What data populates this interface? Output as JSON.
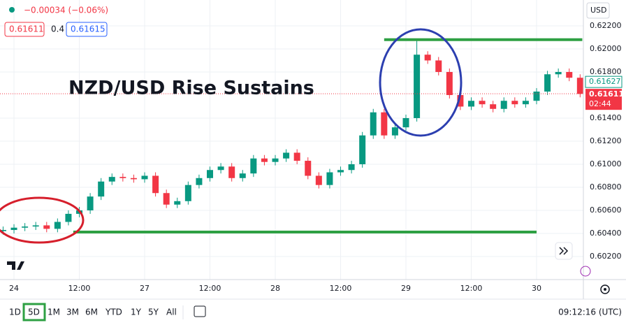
{
  "chart_data": {
    "type": "candlestick",
    "title": "NZD/USD Rise Sustains",
    "x": [
      -2,
      0,
      2,
      4,
      6,
      8,
      10,
      12,
      14,
      16,
      18,
      20,
      22,
      24,
      26,
      28,
      30,
      32,
      34,
      36,
      38,
      40,
      42,
      44,
      46,
      48,
      50,
      52,
      54,
      56,
      58,
      60,
      62,
      64,
      66,
      68,
      70,
      72,
      74,
      76,
      78,
      80,
      82,
      84,
      86,
      88,
      90,
      92,
      94,
      96,
      98,
      100,
      102,
      104
    ],
    "open": [
      0.6042,
      0.6043,
      0.6045,
      0.6046,
      0.6047,
      0.6044,
      0.605,
      0.6057,
      0.606,
      0.6072,
      0.6085,
      0.6089,
      0.6088,
      0.6087,
      0.609,
      0.6075,
      0.6065,
      0.6068,
      0.6082,
      0.6088,
      0.6095,
      0.6098,
      0.6088,
      0.6092,
      0.6105,
      0.6102,
      0.6105,
      0.611,
      0.6103,
      0.609,
      0.6082,
      0.6093,
      0.6095,
      0.61,
      0.6125,
      0.6145,
      0.6125,
      0.6132,
      0.614,
      0.6195,
      0.619,
      0.618,
      0.616,
      0.615,
      0.6155,
      0.6152,
      0.6148,
      0.6155,
      0.6152,
      0.6155,
      0.6163,
      0.6178,
      0.618,
      0.6175
    ],
    "high": [
      0.6046,
      0.6048,
      0.6049,
      0.605,
      0.605,
      0.6053,
      0.606,
      0.6063,
      0.6075,
      0.6088,
      0.6092,
      0.6092,
      0.6091,
      0.6093,
      0.6093,
      0.6078,
      0.6071,
      0.6085,
      0.6091,
      0.6098,
      0.6101,
      0.6101,
      0.6095,
      0.6108,
      0.6108,
      0.6108,
      0.6113,
      0.6113,
      0.6106,
      0.6093,
      0.6096,
      0.6098,
      0.6103,
      0.6128,
      0.6148,
      0.6148,
      0.6135,
      0.6143,
      0.6207,
      0.6198,
      0.6193,
      0.6183,
      0.6163,
      0.6158,
      0.6158,
      0.6155,
      0.6158,
      0.6158,
      0.6158,
      0.6166,
      0.6181,
      0.6183,
      0.6183,
      0.6178
    ],
    "low": [
      0.6039,
      0.604,
      0.6042,
      0.6043,
      0.6041,
      0.6041,
      0.6047,
      0.6054,
      0.6057,
      0.6069,
      0.6082,
      0.6085,
      0.6084,
      0.6084,
      0.6072,
      0.6062,
      0.6062,
      0.6065,
      0.6079,
      0.6085,
      0.6092,
      0.6085,
      0.6085,
      0.6089,
      0.6099,
      0.6099,
      0.6102,
      0.61,
      0.6087,
      0.6079,
      0.6079,
      0.609,
      0.6092,
      0.6097,
      0.6122,
      0.6122,
      0.6122,
      0.6129,
      0.6137,
      0.6187,
      0.6177,
      0.6157,
      0.6147,
      0.6147,
      0.6149,
      0.6145,
      0.6145,
      0.6149,
      0.6149,
      0.6152,
      0.616,
      0.6175,
      0.6172,
      0.6158
    ],
    "close": [
      0.6043,
      0.6045,
      0.6046,
      0.6047,
      0.6044,
      0.605,
      0.6057,
      0.606,
      0.6072,
      0.6085,
      0.6089,
      0.6088,
      0.6087,
      0.609,
      0.6075,
      0.6065,
      0.6068,
      0.6082,
      0.6088,
      0.6095,
      0.6098,
      0.6088,
      0.6092,
      0.6105,
      0.6102,
      0.6105,
      0.611,
      0.6103,
      0.609,
      0.6082,
      0.6093,
      0.6095,
      0.61,
      0.6125,
      0.6145,
      0.6125,
      0.6132,
      0.614,
      0.6195,
      0.619,
      0.618,
      0.616,
      0.615,
      0.6155,
      0.6152,
      0.6148,
      0.6155,
      0.6152,
      0.6155,
      0.6163,
      0.6178,
      0.618,
      0.6175,
      0.6161
    ],
    "up_color": "#089981",
    "down_color": "#f23645",
    "xlim": [
      -2.57,
      104.6
    ],
    "xticks": [
      {
        "value": 0,
        "label": "24"
      },
      {
        "value": 12,
        "label": "12:00"
      },
      {
        "value": 24,
        "label": "27"
      },
      {
        "value": 36,
        "label": "12:00"
      },
      {
        "value": 48,
        "label": "28"
      },
      {
        "value": 60,
        "label": "12:00"
      },
      {
        "value": 72,
        "label": "29"
      },
      {
        "value": 84,
        "label": "12:00"
      },
      {
        "value": 96,
        "label": "30"
      }
    ],
    "ylim": [
      0.6,
      0.62424
    ],
    "yticks": [
      {
        "value": 0.622,
        "label": "0.62200"
      },
      {
        "value": 0.62,
        "label": "0.62000"
      },
      {
        "value": 0.618,
        "label": "0.61800"
      },
      {
        "value": 0.614,
        "label": "0.61400"
      },
      {
        "value": 0.612,
        "label": "0.61200"
      },
      {
        "value": 0.61,
        "label": "0.61000"
      },
      {
        "value": 0.608,
        "label": "0.60800"
      },
      {
        "value": 0.606,
        "label": "0.60600"
      },
      {
        "value": 0.604,
        "label": "0.60400"
      },
      {
        "value": 0.602,
        "label": "0.60200"
      }
    ],
    "grid": true,
    "currency": "USD",
    "annotations": [
      {
        "value": 0.6208,
        "x": [
          68,
          104.4
        ],
        "color": "#2ea043"
      },
      {
        "value": 0.60412,
        "x": [
          10.9,
          96
        ],
        "color": "#2ea043"
      }
    ],
    "price_labels": [
      {
        "value": 0.61627,
        "label": "0.61627"
      },
      {
        "value": 0.61611,
        "label": "0.61611",
        "countdown": "02:44"
      }
    ]
  },
  "ui": {
    "change": "−0.00034 (−0.06%)",
    "bid": "0.61611",
    "spread": "0.4",
    "ask": "0.61615",
    "ranges": [
      "1D",
      "5D",
      "1M",
      "3M",
      "6M",
      "YTD",
      "1Y",
      "5Y",
      "All"
    ],
    "clock": "09:12:16 (UTC)"
  }
}
